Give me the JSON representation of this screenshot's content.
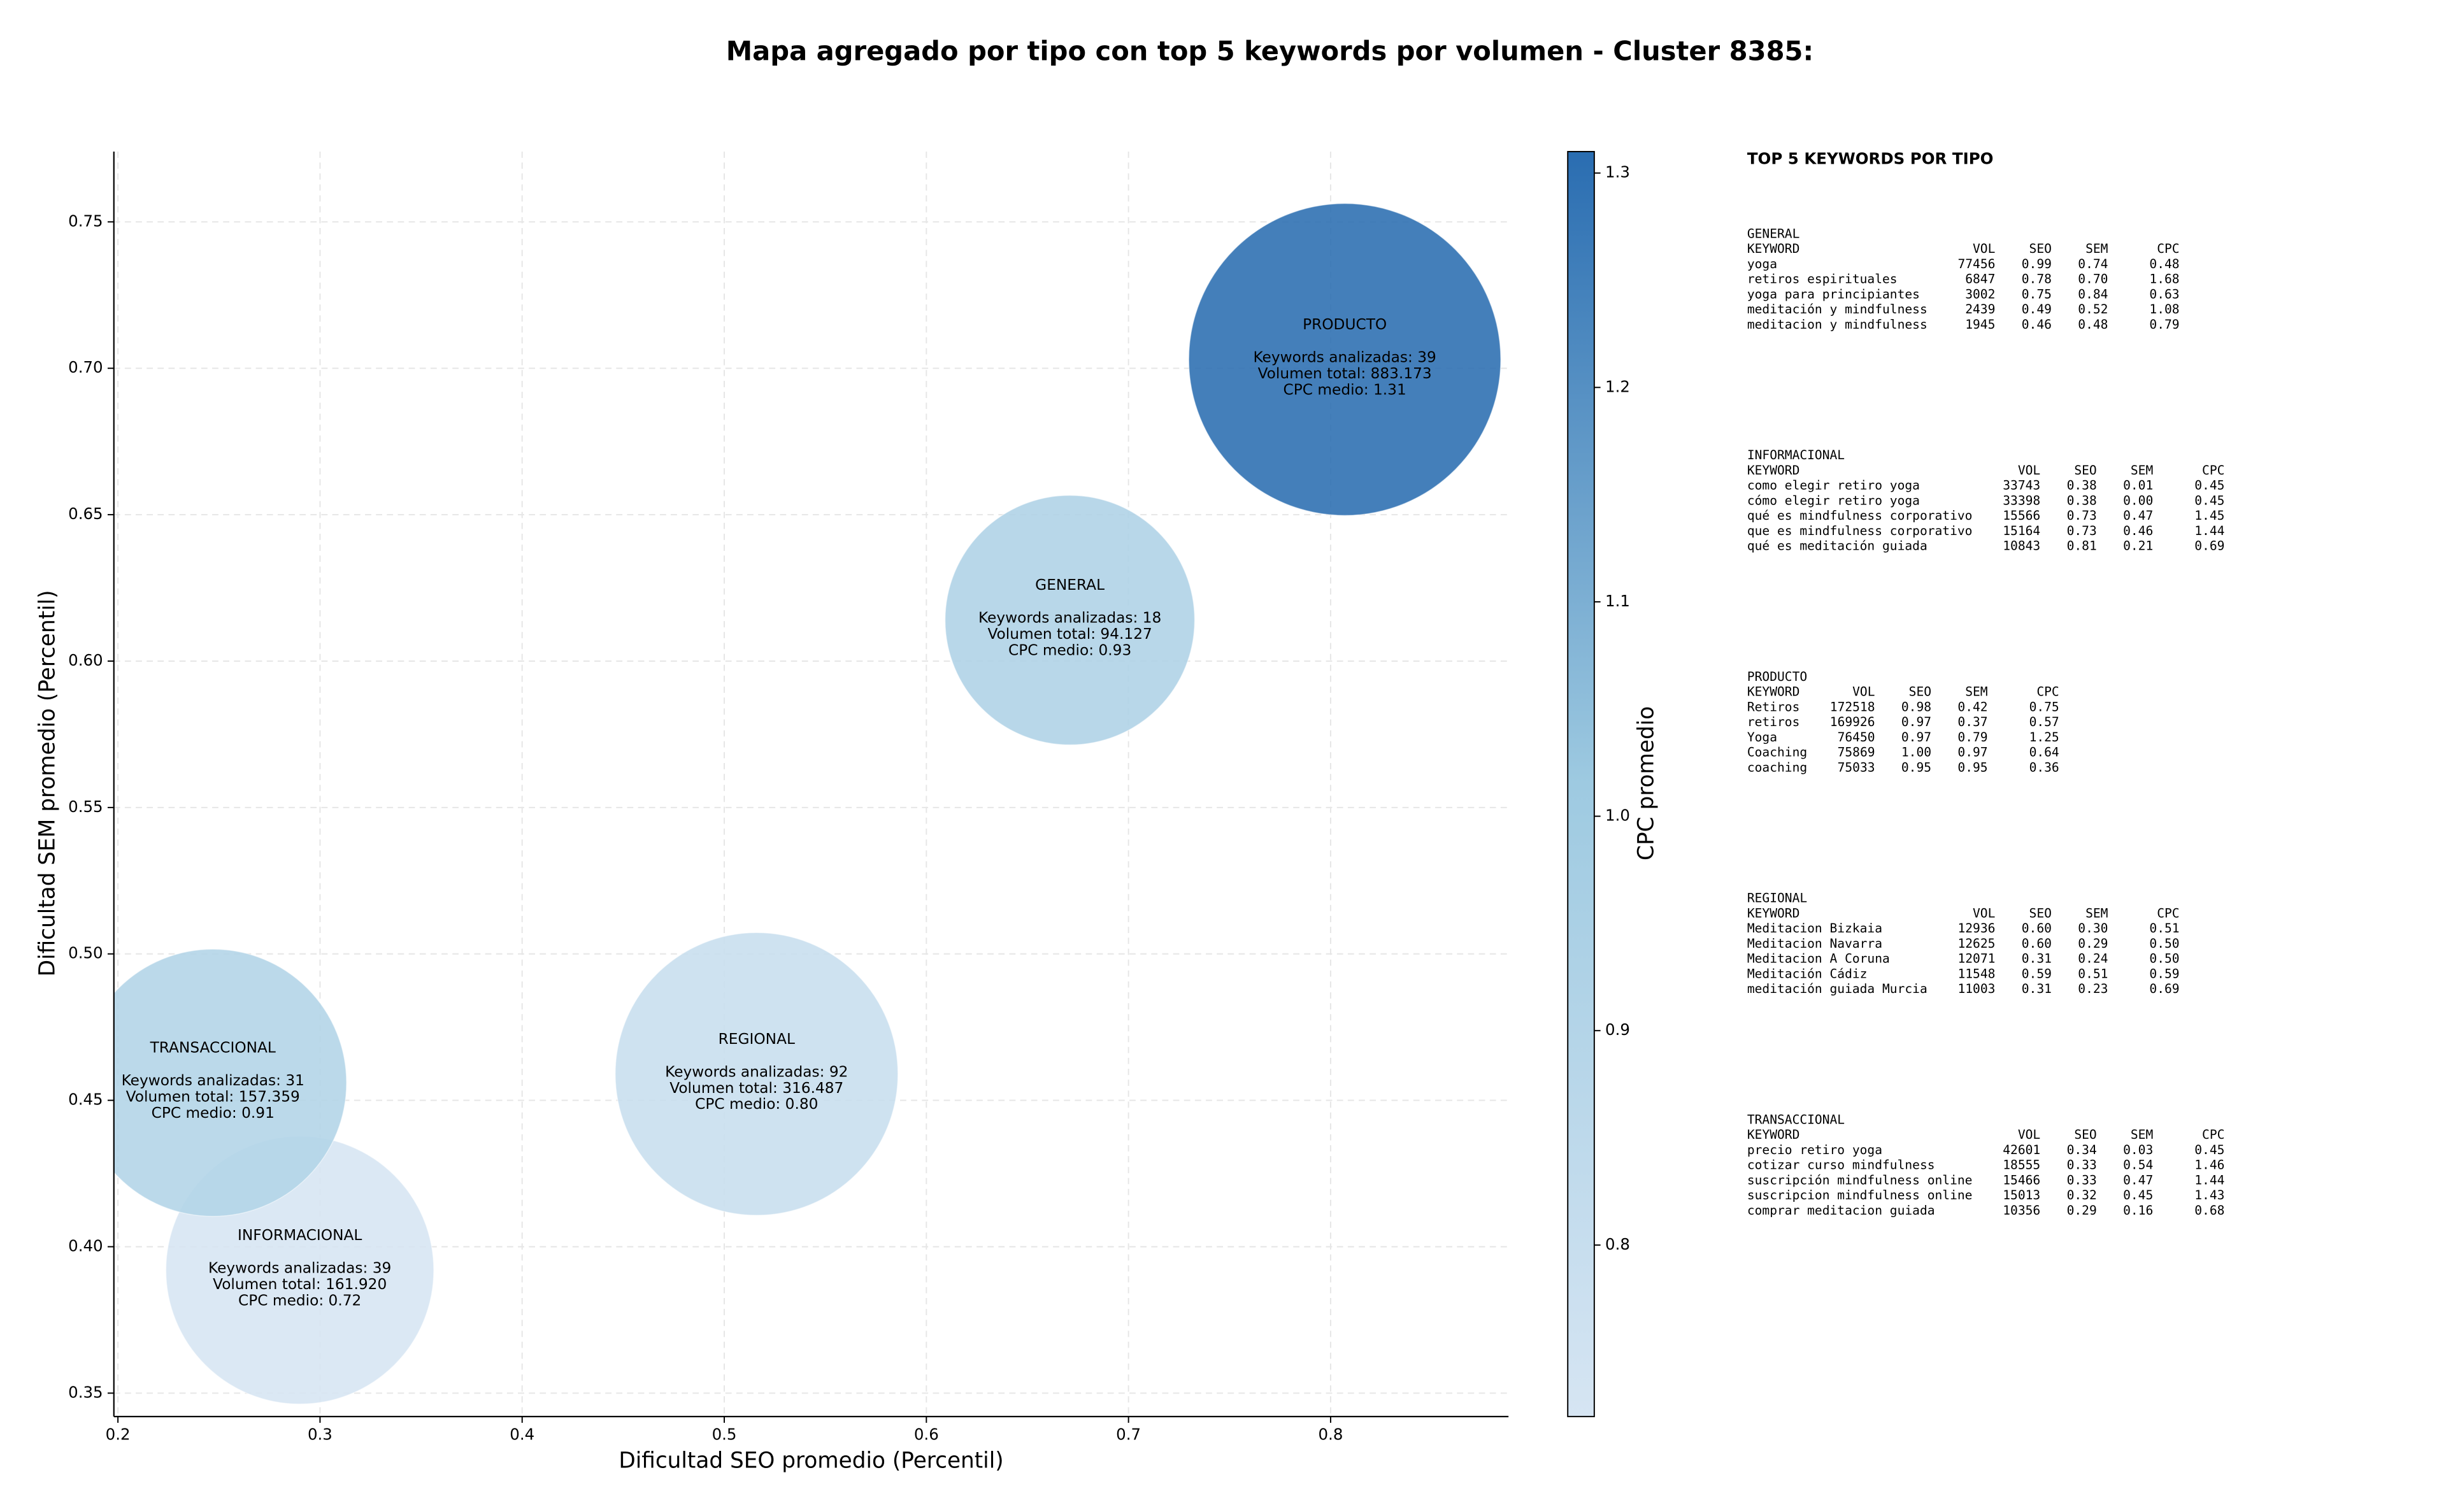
{
  "chart_data": {
    "type": "bubble",
    "title": "Mapa agregado por tipo con top 5 keywords por volumen - Cluster 8385:",
    "xlabel": "Dificultad SEO promedio (Percentil)",
    "ylabel": "Dificultad SEM promedio (Percentil)",
    "xlim": [
      0.198,
      0.888
    ],
    "ylim": [
      0.342,
      0.774
    ],
    "xticks": [
      0.2,
      0.3,
      0.4,
      0.5,
      0.6,
      0.7,
      0.8
    ],
    "yticks": [
      0.35,
      {
        "value": 0.4,
        "label": "0.40"
      },
      0.45,
      {
        "value": 0.5,
        "label": "0.50"
      },
      0.55,
      {
        "value": 0.6,
        "label": "0.60"
      },
      0.65,
      {
        "value": 0.7,
        "label": "0.70"
      },
      0.75
    ],
    "grid": true,
    "names": [
      "GENERAL",
      "INFORMACIONAL",
      "PRODUCTO",
      "REGIONAL",
      "TRANSACCIONAL"
    ],
    "x": [
      0.671,
      0.29,
      0.807,
      0.516,
      0.247
    ],
    "y": [
      0.614,
      0.392,
      0.703,
      0.459,
      0.456
    ],
    "sizes": [
      94127,
      161920,
      883173,
      316487,
      157359
    ],
    "cpc": [
      0.93,
      0.72,
      1.31,
      0.8,
      0.91
    ],
    "annotations": [
      [
        "Keywords analizadas: 18",
        "Volumen total: 94.127",
        "CPC medio: 0.93"
      ],
      [
        "Keywords analizadas: 39",
        "Volumen total: 161.920",
        "CPC medio: 0.72"
      ],
      [
        "Keywords analizadas: 39",
        "Volumen total: 883.173",
        "CPC medio: 1.31"
      ],
      [
        "Keywords analizadas: 92",
        "Volumen total: 316.487",
        "CPC medio: 0.80"
      ],
      [
        "Keywords analizadas: 31",
        "Volumen total: 157.359",
        "CPC medio: 0.91"
      ]
    ],
    "colorbar": {
      "label": "CPC promedio",
      "lim": [
        0.72,
        1.31
      ],
      "ticks": [
        0.8,
        0.9,
        {
          "value": 1.0,
          "label": "1.0"
        },
        1.1,
        1.2,
        1.3
      ],
      "colormap": [
        "#d6e5f3",
        "#9ecae1",
        "#2a6db1"
      ]
    }
  },
  "side_panel": {
    "title": "TOP 5 KEYWORDS POR TIPO",
    "groups": [
      {
        "name": "GENERAL",
        "header": [
          "KEYWORD",
          "VOL",
          "SEO",
          "SEM",
          "CPC"
        ],
        "rows": [
          [
            "yoga",
            "77456",
            "0.99",
            "0.74",
            "0.48"
          ],
          [
            "retiros espirituales",
            "6847",
            "0.78",
            "0.70",
            "1.68"
          ],
          [
            "yoga para principiantes",
            "3002",
            "0.75",
            "0.84",
            "0.63"
          ],
          [
            "meditación y mindfulness",
            "2439",
            "0.49",
            "0.52",
            "1.08"
          ],
          [
            "meditacion y mindfulness",
            "1945",
            "0.46",
            "0.48",
            "0.79"
          ]
        ]
      },
      {
        "name": "INFORMACIONAL",
        "header": [
          "KEYWORD",
          "VOL",
          "SEO",
          "SEM",
          "CPC"
        ],
        "rows": [
          [
            "como elegir retiro yoga",
            "33743",
            "0.38",
            "0.01",
            "0.45"
          ],
          [
            "cómo elegir retiro yoga",
            "33398",
            "0.38",
            "0.00",
            "0.45"
          ],
          [
            "qué es mindfulness corporativo",
            "15566",
            "0.73",
            "0.47",
            "1.45"
          ],
          [
            "que es mindfulness corporativo",
            "15164",
            "0.73",
            "0.46",
            "1.44"
          ],
          [
            "qué es meditación guiada",
            "10843",
            "0.81",
            "0.21",
            "0.69"
          ]
        ]
      },
      {
        "name": "PRODUCTO",
        "header": [
          "KEYWORD",
          "VOL",
          "SEO",
          "SEM",
          "CPC"
        ],
        "rows": [
          [
            "Retiros",
            "172518",
            "0.98",
            "0.42",
            "0.75"
          ],
          [
            "retiros",
            "169926",
            "0.97",
            "0.37",
            "0.57"
          ],
          [
            "Yoga",
            "76450",
            "0.97",
            "0.79",
            "1.25"
          ],
          [
            "Coaching",
            "75869",
            "1.00",
            "0.97",
            "0.64"
          ],
          [
            "coaching",
            "75033",
            "0.95",
            "0.95",
            "0.36"
          ]
        ]
      },
      {
        "name": "REGIONAL",
        "header": [
          "KEYWORD",
          "VOL",
          "SEO",
          "SEM",
          "CPC"
        ],
        "rows": [
          [
            "Meditacion Bizkaia",
            "12936",
            "0.60",
            "0.30",
            "0.51"
          ],
          [
            "Meditacion Navarra",
            "12625",
            "0.60",
            "0.29",
            "0.50"
          ],
          [
            "Meditacion A Coruna",
            "12071",
            "0.31",
            "0.24",
            "0.50"
          ],
          [
            "Meditación Cádiz",
            "11548",
            "0.59",
            "0.51",
            "0.59"
          ],
          [
            "meditación guiada Murcia",
            "11003",
            "0.31",
            "0.23",
            "0.69"
          ]
        ]
      },
      {
        "name": "TRANSACCIONAL",
        "header": [
          "KEYWORD",
          "VOL",
          "SEO",
          "SEM",
          "CPC"
        ],
        "rows": [
          [
            "precio retiro yoga",
            "42601",
            "0.34",
            "0.03",
            "0.45"
          ],
          [
            "cotizar curso mindfulness",
            "18555",
            "0.33",
            "0.54",
            "1.46"
          ],
          [
            "suscripción mindfulness online",
            "15466",
            "0.33",
            "0.47",
            "1.44"
          ],
          [
            "suscripcion mindfulness online",
            "15013",
            "0.32",
            "0.45",
            "1.43"
          ],
          [
            "comprar meditacion guiada",
            "10356",
            "0.29",
            "0.16",
            "0.68"
          ]
        ]
      }
    ]
  }
}
